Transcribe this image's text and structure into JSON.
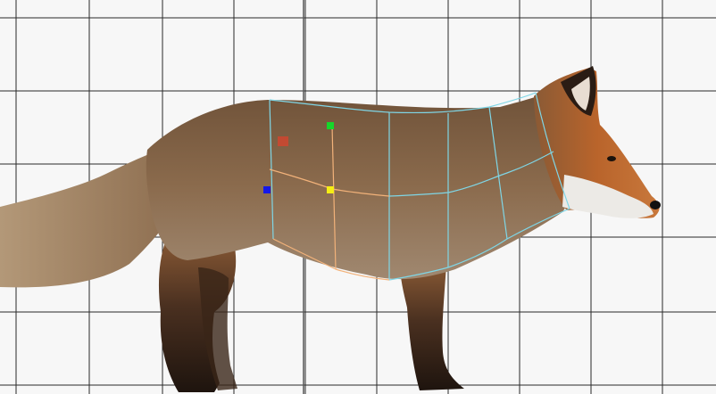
{
  "viewport": {
    "background": "#f7f7f7",
    "grid_color": "#2a2a2a"
  },
  "subject": {
    "icon": "fox-model",
    "fur_colors": {
      "body": "#8a6a4c",
      "back": "#6e5138",
      "head": "#b9642b",
      "white": "#eceae6",
      "legs": "#2a1c14",
      "tail": "#9b7b5a"
    }
  },
  "cage": {
    "outer_edge_color": "#7fd6e6",
    "inner_edge_color": "#f2b27a"
  },
  "handles": {
    "red": "#d9432c",
    "green": "#16d62a",
    "blue": "#1518e8",
    "yellow": "#f6ee14"
  }
}
